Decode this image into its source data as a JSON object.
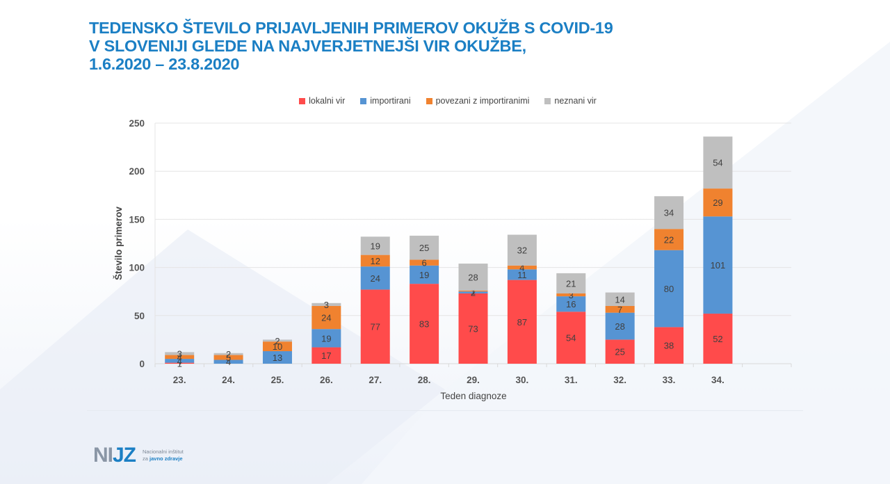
{
  "title_lines": [
    "TEDENSKO ŠTEVILO PRIJAVLJENIH PRIMEROV OKUŽB S COVID-19",
    "V SLOVENIJI GLEDE NA NAJVERJETNEJŠI VIR OKUŽBE,",
    "1.6.2020 – 23.8.2020"
  ],
  "logo": {
    "mark_left": "NI",
    "mark_accent": "JZ",
    "line1": "Nacionalni inštitut",
    "line2_prefix": "za ",
    "line2_bold": "javno zdravje"
  },
  "chart_data": {
    "type": "bar",
    "stacked": true,
    "title": "TEDENSKO ŠTEVILO PRIJAVLJENIH PRIMEROV OKUŽB S COVID-19 V SLOVENIJI GLEDE NA NAJVERJETNEJŠI VIR OKUŽBE, 1.6.2020 – 23.8.2020",
    "xlabel": "Teden diagnoze",
    "ylabel": "Število primerov",
    "ylim": [
      0,
      250
    ],
    "yticks": [
      0,
      50,
      100,
      150,
      200,
      250
    ],
    "grid": true,
    "legend_position": "top",
    "categories": [
      "23.",
      "24.",
      "25.",
      "26.",
      "27.",
      "28.",
      "29.",
      "30.",
      "31.",
      "32.",
      "33.",
      "34."
    ],
    "series": [
      {
        "name": "lokalni vir",
        "color": "#ff4b4b",
        "values": [
          1,
          0,
          0,
          17,
          77,
          83,
          73,
          87,
          54,
          25,
          38,
          52
        ]
      },
      {
        "name": "importirani",
        "color": "#5694d3",
        "values": [
          4,
          4,
          13,
          19,
          24,
          19,
          2,
          11,
          16,
          28,
          80,
          101
        ]
      },
      {
        "name": "povezani z importiranimi",
        "color": "#f0822f",
        "values": [
          4,
          5,
          10,
          24,
          12,
          6,
          1,
          4,
          3,
          7,
          22,
          29
        ]
      },
      {
        "name": "neznani vir",
        "color": "#bfbfbf",
        "values": [
          3,
          2,
          2,
          3,
          19,
          25,
          28,
          32,
          21,
          14,
          34,
          54
        ]
      }
    ]
  }
}
